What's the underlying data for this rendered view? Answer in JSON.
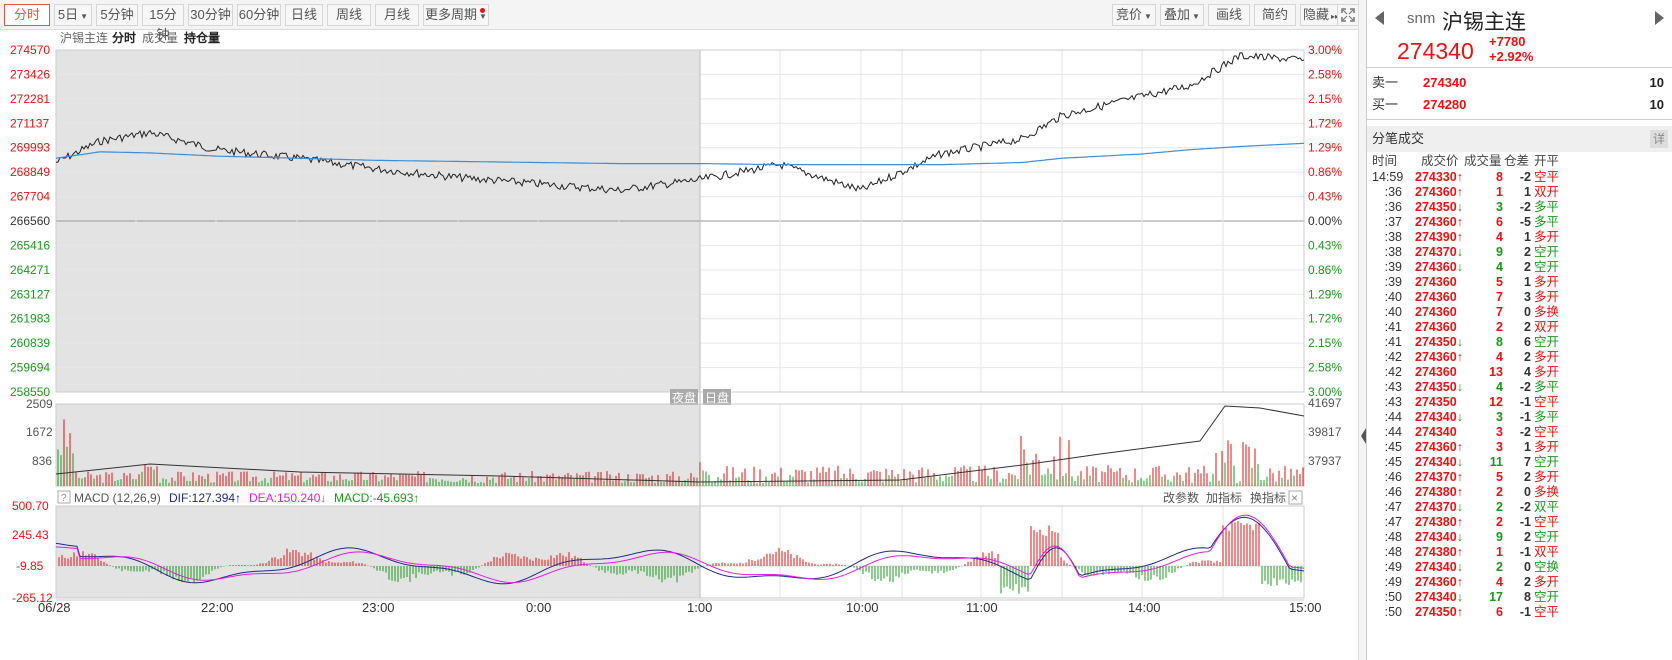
{
  "toolbar": {
    "left": [
      {
        "label": "分时",
        "active": true,
        "dropdown": false
      },
      {
        "label": "5日",
        "active": false,
        "dropdown": true
      },
      {
        "label": "5分钟",
        "active": false,
        "dropdown": false
      },
      {
        "label": "15分钟",
        "active": false,
        "dropdown": false
      },
      {
        "label": "30分钟",
        "active": false,
        "dropdown": false
      },
      {
        "label": "60分钟",
        "active": false,
        "dropdown": false
      },
      {
        "label": "日线",
        "active": false,
        "dropdown": false
      },
      {
        "label": "周线",
        "active": false,
        "dropdown": false
      },
      {
        "label": "月线",
        "active": false,
        "dropdown": false
      },
      {
        "label": "更多周期",
        "active": false,
        "dropdown": true
      }
    ],
    "right": [
      {
        "label": "竞价",
        "dropdown": true
      },
      {
        "label": "叠加",
        "dropdown": true
      },
      {
        "label": "画线",
        "dropdown": false
      },
      {
        "label": "简约",
        "dropdown": false
      },
      {
        "label": "隐藏",
        "dropdown": false
      }
    ],
    "expand_icon": "fullscreen-icon"
  },
  "chart": {
    "title_tabs": [
      "沪锡主连",
      "分时",
      "成交量",
      "持仓量"
    ],
    "price_labels_left": [
      "274570",
      "273426",
      "272281",
      "271137",
      "269993",
      "268849",
      "267704",
      "266560",
      "265416",
      "264271",
      "263127",
      "261983",
      "260839",
      "259694",
      "258550"
    ],
    "pct_labels_right": [
      "3.00%",
      "2.58%",
      "2.15%",
      "1.72%",
      "1.29%",
      "0.86%",
      "0.43%",
      "0.00%",
      "0.43%",
      "0.86%",
      "1.29%",
      "1.72%",
      "2.15%",
      "2.58%",
      "3.00%"
    ],
    "session_labels": [
      "夜盘",
      "日盘"
    ],
    "volume_labels_left": [
      "2509",
      "1672",
      "836"
    ],
    "oi_labels_right": [
      "41697",
      "39817",
      "37937"
    ],
    "macd_header": {
      "help": "?",
      "name": "MACD (12,26,9)",
      "dif": "DIF:127.394↑",
      "dea": "DEA:150.240↓",
      "macd": "MACD:-45.693↑",
      "actions": [
        "改参数",
        "加指标",
        "换指标"
      ],
      "close": "×"
    },
    "macd_labels_left": [
      "500.70",
      "245.43",
      "-9.85",
      "-265.12"
    ],
    "time_labels": [
      "06/28",
      "22:00",
      "23:00",
      "0:00",
      "1:00",
      "10:00",
      "11:00",
      "14:00",
      "15:00"
    ],
    "colors": {
      "up": "#e11111",
      "down": "#1a9a1a",
      "price_line": "#222222",
      "avg_line": "#3a8fd8",
      "dif": "#1f2a8a",
      "dea": "#e020e0",
      "night_bg": "#e3e3e3"
    }
  },
  "chart_data": {
    "type": "line",
    "title": "沪锡主连",
    "x": [
      "06/28 21:00",
      "22:00",
      "23:00",
      "0:00",
      "1:00",
      "10:00",
      "11:00",
      "14:00",
      "15:00"
    ],
    "price_series": {
      "name": "分时",
      "values": [
        269300,
        270300,
        270700,
        269900,
        269500,
        269000,
        268600,
        268300,
        268000,
        268500,
        269200,
        268000,
        269700,
        270400,
        271500,
        272400,
        272900,
        274300,
        274100
      ]
    },
    "avg_series": {
      "values": [
        269500,
        269800,
        269750,
        269600,
        269500,
        269400,
        269350,
        269300,
        269250,
        269250,
        269200,
        269200,
        269200,
        269300,
        269500,
        269700,
        269900,
        270050,
        270200
      ]
    },
    "ylim": [
      258550,
      274570
    ],
    "pct_range": [
      -3.0,
      3.0
    ]
  },
  "panel": {
    "code": "snm",
    "name": "沪锡主连",
    "price": "274340",
    "change": "+7780",
    "change_pct": "+2.92%",
    "sell1_label": "卖一",
    "sell1_price": "274340",
    "sell1_vol": "10",
    "buy1_label": "买一",
    "buy1_price": "274280",
    "buy1_vol": "10",
    "ticks_title": "分笔成交",
    "ticks_detail": "详",
    "tick_cols": [
      "时间",
      "成交价",
      "成交量",
      "仓差",
      "开平"
    ],
    "ticks": [
      {
        "t": "14:59",
        "p": "274330",
        "a": "↑",
        "v": "8",
        "d": "-2",
        "k": "空平",
        "kc": "red"
      },
      {
        "t": ":36",
        "p": "274360",
        "a": "↑",
        "v": "1",
        "d": "1",
        "k": "双开",
        "kc": "red"
      },
      {
        "t": ":36",
        "p": "274350",
        "a": "↓",
        "v": "3",
        "d": "-2",
        "k": "多平",
        "kc": "green"
      },
      {
        "t": ":37",
        "p": "274360",
        "a": "↑",
        "v": "6",
        "d": "-5",
        "k": "多平",
        "kc": "green"
      },
      {
        "t": ":38",
        "p": "274390",
        "a": "↑",
        "v": "4",
        "d": "1",
        "k": "多开",
        "kc": "red"
      },
      {
        "t": ":38",
        "p": "274370",
        "a": "↓",
        "v": "9",
        "d": "2",
        "k": "空开",
        "kc": "green"
      },
      {
        "t": ":39",
        "p": "274360",
        "a": "↓",
        "v": "4",
        "d": "2",
        "k": "空开",
        "kc": "green"
      },
      {
        "t": ":39",
        "p": "274360",
        "a": "",
        "v": "5",
        "d": "1",
        "k": "多开",
        "kc": "red"
      },
      {
        "t": ":40",
        "p": "274360",
        "a": "",
        "v": "7",
        "d": "3",
        "k": "多开",
        "kc": "red"
      },
      {
        "t": ":40",
        "p": "274360",
        "a": "",
        "v": "7",
        "d": "0",
        "k": "多换",
        "kc": "red"
      },
      {
        "t": ":41",
        "p": "274360",
        "a": "",
        "v": "2",
        "d": "2",
        "k": "双开",
        "kc": "red"
      },
      {
        "t": ":41",
        "p": "274350",
        "a": "↓",
        "v": "8",
        "d": "6",
        "k": "空开",
        "kc": "green"
      },
      {
        "t": ":42",
        "p": "274360",
        "a": "↑",
        "v": "4",
        "d": "2",
        "k": "多开",
        "kc": "red"
      },
      {
        "t": ":42",
        "p": "274360",
        "a": "",
        "v": "13",
        "d": "4",
        "k": "多开",
        "kc": "red"
      },
      {
        "t": ":43",
        "p": "274350",
        "a": "↓",
        "v": "4",
        "d": "-2",
        "k": "多平",
        "kc": "green"
      },
      {
        "t": ":43",
        "p": "274350",
        "a": "",
        "v": "12",
        "d": "-1",
        "k": "空平",
        "kc": "red"
      },
      {
        "t": ":44",
        "p": "274340",
        "a": "↓",
        "v": "3",
        "d": "-1",
        "k": "多平",
        "kc": "green"
      },
      {
        "t": ":44",
        "p": "274340",
        "a": "",
        "v": "3",
        "d": "-2",
        "k": "空平",
        "kc": "red"
      },
      {
        "t": ":45",
        "p": "274360",
        "a": "↑",
        "v": "3",
        "d": "1",
        "k": "多开",
        "kc": "red"
      },
      {
        "t": ":45",
        "p": "274340",
        "a": "↓",
        "v": "11",
        "d": "7",
        "k": "空开",
        "kc": "green"
      },
      {
        "t": ":46",
        "p": "274370",
        "a": "↑",
        "v": "5",
        "d": "2",
        "k": "多开",
        "kc": "red"
      },
      {
        "t": ":46",
        "p": "274380",
        "a": "↑",
        "v": "2",
        "d": "0",
        "k": "多换",
        "kc": "red"
      },
      {
        "t": ":47",
        "p": "274370",
        "a": "↓",
        "v": "2",
        "d": "-2",
        "k": "双平",
        "kc": "green"
      },
      {
        "t": ":47",
        "p": "274380",
        "a": "↑",
        "v": "2",
        "d": "-1",
        "k": "空平",
        "kc": "red"
      },
      {
        "t": ":48",
        "p": "274340",
        "a": "↓",
        "v": "9",
        "d": "2",
        "k": "空开",
        "kc": "green"
      },
      {
        "t": ":48",
        "p": "274380",
        "a": "↑",
        "v": "1",
        "d": "-1",
        "k": "双平",
        "kc": "red"
      },
      {
        "t": ":49",
        "p": "274340",
        "a": "↓",
        "v": "2",
        "d": "0",
        "k": "空换",
        "kc": "green"
      },
      {
        "t": ":49",
        "p": "274360",
        "a": "↑",
        "v": "4",
        "d": "2",
        "k": "多开",
        "kc": "red"
      },
      {
        "t": ":50",
        "p": "274340",
        "a": "↓",
        "v": "17",
        "d": "8",
        "k": "空开",
        "kc": "green"
      },
      {
        "t": ":50",
        "p": "274350",
        "a": "↑",
        "v": "6",
        "d": "-1",
        "k": "空平",
        "kc": "red"
      }
    ]
  }
}
